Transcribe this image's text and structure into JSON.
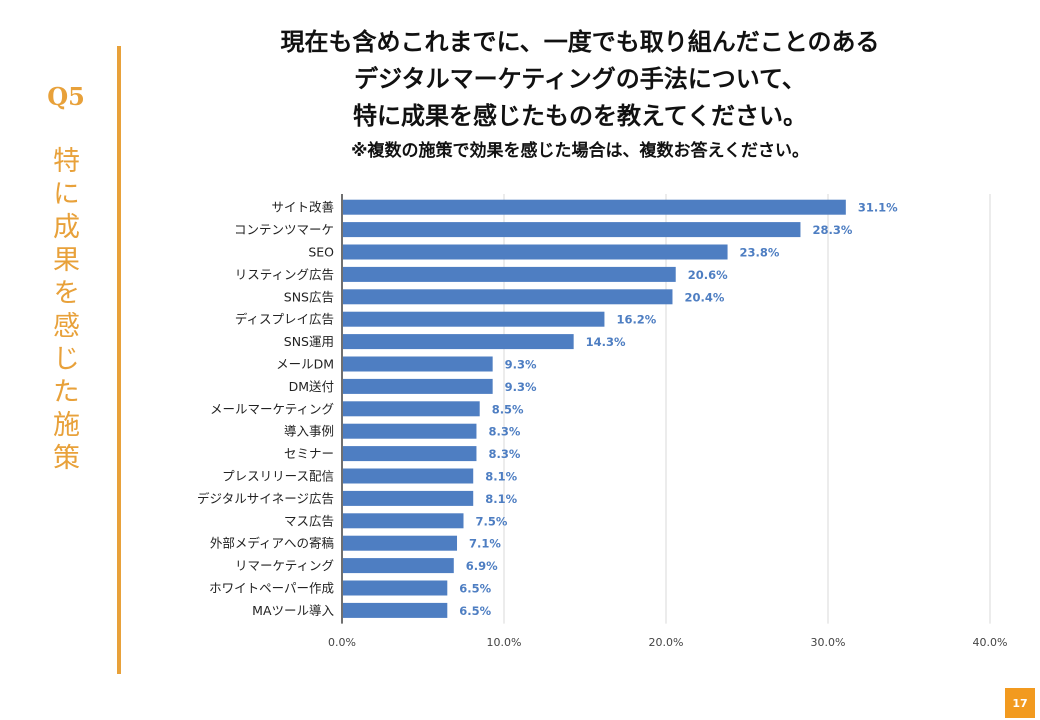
{
  "question": {
    "label": "Q5",
    "topic": "特に成果を感じた施策"
  },
  "header": {
    "title_lines": [
      "現在も含めこれまでに、一度でも取り組んだことのある",
      "デジタルマーケティングの手法について、",
      "特に成果を感じたものを教えてください。"
    ],
    "note": "※複数の施策で効果を感じた場合は、複数お答えください。"
  },
  "page_number": "17",
  "colors": {
    "accent": "#E8A13A",
    "bar": "#4E7EC2",
    "value_label": "#4E7EC2",
    "grid": "#D9D9D9",
    "axis": "#333333",
    "page_badge": "#F29A1F"
  },
  "chart_data": {
    "type": "bar",
    "orientation": "horizontal",
    "categories": [
      "サイト改善",
      "コンテンツマーケ",
      "SEO",
      "リスティング広告",
      "SNS広告",
      "ディスプレイ広告",
      "SNS運用",
      "メールDM",
      "DM送付",
      "メールマーケティング",
      "導入事例",
      "セミナー",
      "プレスリリース配信",
      "デジタルサイネージ広告",
      "マス広告",
      "外部メディアへの寄稿",
      "リマーケティング",
      "ホワイトペーパー作成",
      "MAツール導入"
    ],
    "values": [
      31.1,
      28.3,
      23.8,
      20.6,
      20.4,
      16.2,
      14.3,
      9.3,
      9.3,
      8.5,
      8.3,
      8.3,
      8.1,
      8.1,
      7.5,
      7.1,
      6.9,
      6.5,
      6.5
    ],
    "value_labels": [
      "31.1%",
      "28.3%",
      "23.8%",
      "20.6%",
      "20.4%",
      "16.2%",
      "14.3%",
      "9.3%",
      "9.3%",
      "8.5%",
      "8.3%",
      "8.3%",
      "8.1%",
      "8.1%",
      "7.5%",
      "7.1%",
      "6.9%",
      "6.5%",
      "6.5%"
    ],
    "xlim": [
      0,
      40
    ],
    "xticks": [
      0,
      10,
      20,
      30,
      40
    ],
    "xtick_labels": [
      "0.0%",
      "10.0%",
      "20.0%",
      "30.0%",
      "40.0%"
    ],
    "grid": true,
    "legend": "none",
    "xlabel": "",
    "ylabel": ""
  }
}
